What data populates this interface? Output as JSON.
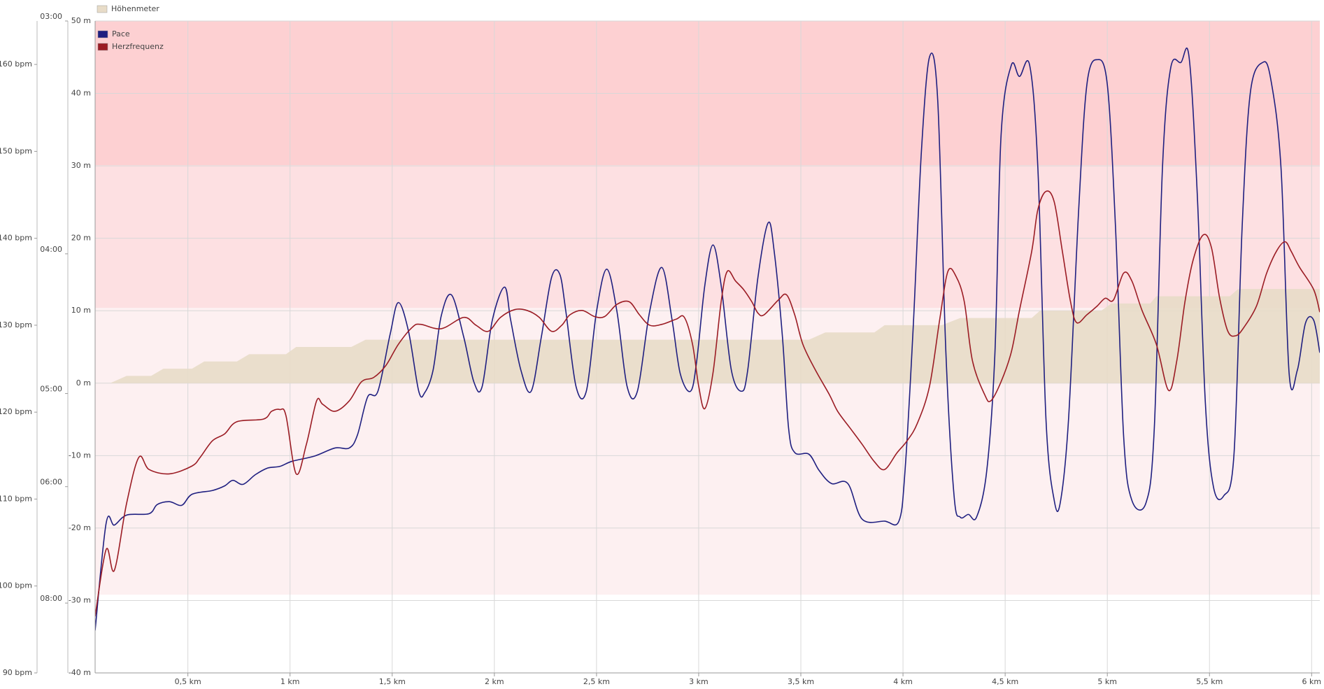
{
  "chart_data": {
    "type": "line",
    "xlim": [
      0.046,
      6.04
    ],
    "xticks": [
      {
        "value": 0.5,
        "label": "0,5 km"
      },
      {
        "value": 1,
        "label": "1 km"
      },
      {
        "value": 1.5,
        "label": "1,5 km"
      },
      {
        "value": 2,
        "label": "2 km"
      },
      {
        "value": 2.5,
        "label": "2,5 km"
      },
      {
        "value": 3,
        "label": "3 km"
      },
      {
        "value": 3.5,
        "label": "3,5 km"
      },
      {
        "value": 4,
        "label": "4 km"
      },
      {
        "value": 4.5,
        "label": "4,5 km"
      },
      {
        "value": 5,
        "label": "5 km"
      },
      {
        "value": 5.5,
        "label": "5,5 km"
      },
      {
        "value": 6,
        "label": "6 km"
      }
    ],
    "ylim": [
      -40,
      50
    ],
    "yticks": [
      {
        "value": -40,
        "label": "-40 m"
      },
      {
        "value": -30,
        "label": "-30 m"
      },
      {
        "value": -20,
        "label": "-20 m"
      },
      {
        "value": -10,
        "label": "-10 m"
      },
      {
        "value": 0,
        "label": "0 m"
      },
      {
        "value": 10,
        "label": "10 m"
      },
      {
        "value": 20,
        "label": "20 m"
      },
      {
        "value": 30,
        "label": "30 m"
      },
      {
        "value": 40,
        "label": "40 m"
      },
      {
        "value": 50,
        "label": "50 m"
      }
    ],
    "y2lim": [
      90,
      165
    ],
    "y2ticks": [
      {
        "value": 90,
        "label": "90 bpm"
      },
      {
        "value": 100,
        "label": "100 bpm"
      },
      {
        "value": 110,
        "label": "110 bpm"
      },
      {
        "value": 120,
        "label": "120 bpm"
      },
      {
        "value": 130,
        "label": "130 bpm"
      },
      {
        "value": 140,
        "label": "140 bpm"
      },
      {
        "value": 150,
        "label": "150 bpm"
      },
      {
        "value": 160,
        "label": "160 bpm"
      }
    ],
    "y3lim": [
      10,
      3
    ],
    "y3scale": "inverse",
    "y3ticks": [
      {
        "value": 3,
        "label": "03:00"
      },
      {
        "value": 4,
        "label": "04:00"
      },
      {
        "value": 5,
        "label": "05:00"
      },
      {
        "value": 6,
        "label": "06:00"
      },
      {
        "value": 8,
        "label": "08:00"
      }
    ],
    "grid": true,
    "zones": [
      {
        "from": 99,
        "to": 132,
        "color": "#fdf0f1"
      },
      {
        "from": 132,
        "to": 148.4,
        "color": "#fde0e2"
      },
      {
        "from": 148.4,
        "to": 165,
        "color": "#fdd0d2"
      }
    ],
    "series": [
      {
        "name": "Höhenmeter",
        "type": "area",
        "axis": "y",
        "color": "#e8dcc8",
        "x": [
          0.046,
          0.12,
          0.2,
          0.32,
          0.38,
          0.52,
          0.58,
          0.74,
          0.8,
          0.98,
          1.03,
          1.3,
          1.37,
          3.54,
          3.62,
          3.86,
          3.91,
          4.19,
          4.28,
          4.63,
          4.67,
          4.97,
          5.02,
          5.21,
          5.24,
          5.6,
          5.64,
          6.04
        ],
        "values": [
          0,
          0,
          1,
          1,
          2,
          2,
          3,
          3,
          4,
          4,
          5,
          5,
          6,
          6,
          7,
          7,
          8,
          8,
          9,
          9,
          10,
          10,
          11,
          11,
          12,
          12,
          13,
          13
        ]
      },
      {
        "name": "Pace",
        "type": "line",
        "axis": "y3",
        "color": "#1f1f80",
        "x": [
          0.046,
          0.1,
          0.14,
          0.2,
          0.31,
          0.35,
          0.41,
          0.47,
          0.52,
          0.62,
          0.68,
          0.72,
          0.77,
          0.83,
          0.89,
          0.95,
          1.01,
          1.12,
          1.22,
          1.29,
          1.33,
          1.38,
          1.43,
          1.49,
          1.53,
          1.58,
          1.63,
          1.66,
          1.7,
          1.74,
          1.79,
          1.85,
          1.9,
          1.94,
          1.99,
          2.05,
          2.08,
          2.13,
          2.18,
          2.23,
          2.28,
          2.32,
          2.35,
          2.4,
          2.45,
          2.5,
          2.55,
          2.6,
          2.65,
          2.7,
          2.76,
          2.82,
          2.87,
          2.91,
          2.96,
          2.99,
          3.03,
          3.07,
          3.11,
          3.16,
          3.21,
          3.24,
          3.29,
          3.34,
          3.37,
          3.41,
          3.44,
          3.47,
          3.54,
          3.59,
          3.65,
          3.73,
          3.8,
          3.91,
          3.98,
          4.01,
          4.05,
          4.09,
          4.13,
          4.17,
          4.21,
          4.25,
          4.28,
          4.32,
          4.36,
          4.41,
          4.45,
          4.48,
          4.53,
          4.57,
          4.62,
          4.66,
          4.7,
          4.74,
          4.77,
          4.81,
          4.86,
          4.9,
          4.95,
          5.0,
          5.04,
          5.08,
          5.12,
          5.19,
          5.23,
          5.27,
          5.31,
          5.36,
          5.4,
          5.44,
          5.48,
          5.52,
          5.57,
          5.62,
          5.66,
          5.7,
          5.76,
          5.8,
          5.85,
          5.89,
          5.93,
          5.97,
          6.01,
          6.04
        ],
        "values": [
          8.68,
          6.51,
          6.54,
          6.39,
          6.37,
          6.24,
          6.2,
          6.25,
          6.1,
          6.05,
          5.99,
          5.92,
          5.97,
          5.85,
          5.77,
          5.75,
          5.69,
          5.63,
          5.54,
          5.54,
          5.4,
          5.03,
          4.98,
          4.52,
          4.3,
          4.5,
          4.98,
          4.99,
          4.8,
          4.39,
          4.25,
          4.54,
          4.9,
          4.94,
          4.42,
          4.2,
          4.42,
          4.8,
          4.98,
          4.54,
          4.14,
          4.12,
          4.36,
          4.94,
          4.98,
          4.36,
          4.09,
          4.36,
          4.94,
          4.98,
          4.36,
          4.08,
          4.42,
          4.83,
          4.98,
          4.73,
          4.19,
          3.95,
          4.19,
          4.8,
          4.98,
          4.8,
          4.14,
          3.83,
          3.99,
          4.54,
          5.33,
          5.59,
          5.61,
          5.8,
          5.96,
          5.96,
          6.45,
          6.48,
          6.48,
          5.8,
          4.47,
          3.49,
          3.12,
          3.28,
          4.66,
          6.12,
          6.42,
          6.38,
          6.42,
          5.8,
          4.66,
          3.42,
          3.15,
          3.19,
          3.15,
          3.56,
          5.25,
          6.18,
          6.21,
          5.25,
          3.76,
          3.22,
          3.13,
          3.22,
          3.85,
          5.42,
          6.18,
          6.21,
          5.33,
          3.56,
          3.16,
          3.14,
          3.12,
          3.68,
          5.09,
          6.01,
          6.12,
          5.61,
          3.85,
          3.25,
          3.14,
          3.2,
          3.56,
          4.83,
          4.8,
          4.44,
          4.42,
          4.66
        ]
      },
      {
        "name": "Herzfrequenz",
        "type": "line",
        "axis": "y2",
        "color": "#9b1c24",
        "x": [
          0.046,
          0.1,
          0.14,
          0.2,
          0.26,
          0.31,
          0.41,
          0.52,
          0.56,
          0.62,
          0.68,
          0.74,
          0.87,
          0.91,
          0.95,
          0.98,
          1.03,
          1.08,
          1.13,
          1.16,
          1.22,
          1.29,
          1.35,
          1.41,
          1.47,
          1.53,
          1.6,
          1.64,
          1.74,
          1.85,
          1.91,
          1.97,
          2.03,
          2.1,
          2.16,
          2.22,
          2.28,
          2.33,
          2.37,
          2.43,
          2.49,
          2.54,
          2.6,
          2.66,
          2.71,
          2.76,
          2.82,
          2.89,
          2.93,
          2.97,
          3.0,
          3.03,
          3.07,
          3.11,
          3.14,
          3.18,
          3.22,
          3.26,
          3.29,
          3.32,
          3.39,
          3.43,
          3.47,
          3.51,
          3.57,
          3.64,
          3.68,
          3.74,
          3.8,
          3.86,
          3.91,
          3.97,
          4.02,
          4.07,
          4.13,
          4.18,
          4.22,
          4.26,
          4.3,
          4.34,
          4.4,
          4.43,
          4.48,
          4.53,
          4.57,
          4.63,
          4.66,
          4.7,
          4.74,
          4.78,
          4.82,
          4.85,
          4.9,
          4.95,
          4.99,
          5.03,
          5.08,
          5.12,
          5.17,
          5.24,
          5.3,
          5.34,
          5.38,
          5.42,
          5.47,
          5.51,
          5.55,
          5.59,
          5.63,
          5.67,
          5.73,
          5.78,
          5.83,
          5.87,
          5.9,
          5.94,
          6.01,
          6.04
        ],
        "values": [
          96.5,
          104.2,
          101.8,
          109.5,
          114.8,
          113.4,
          112.9,
          113.8,
          114.8,
          116.7,
          117.5,
          118.9,
          119.2,
          120.1,
          120.3,
          119.6,
          112.9,
          116.3,
          121.3,
          120.9,
          120.1,
          121.3,
          123.5,
          124.0,
          125.4,
          127.8,
          129.8,
          130.1,
          129.6,
          130.9,
          130.0,
          129.3,
          130.9,
          131.8,
          131.7,
          130.9,
          129.3,
          130.0,
          131.2,
          131.7,
          131.0,
          131.0,
          132.4,
          132.7,
          131.2,
          130.0,
          130.1,
          130.7,
          130.9,
          127.8,
          123.0,
          120.4,
          124.5,
          132.7,
          136.2,
          135.1,
          134.1,
          132.7,
          131.4,
          131.2,
          132.9,
          133.5,
          131.2,
          127.8,
          124.9,
          122.0,
          120.1,
          118.2,
          116.3,
          114.3,
          113.4,
          115.3,
          116.7,
          118.7,
          123.0,
          130.7,
          136.2,
          135.6,
          132.7,
          125.9,
          122.0,
          121.3,
          123.5,
          126.9,
          131.7,
          138.5,
          143.3,
          145.4,
          144.2,
          138.5,
          132.7,
          130.3,
          131.2,
          132.2,
          133.1,
          132.9,
          136.0,
          135.1,
          131.7,
          127.8,
          122.5,
          125.9,
          132.7,
          137.5,
          140.4,
          138.9,
          133.1,
          129.3,
          128.8,
          129.8,
          132.2,
          136.0,
          138.6,
          139.6,
          138.5,
          136.7,
          134.1,
          131.5
        ]
      }
    ]
  }
}
